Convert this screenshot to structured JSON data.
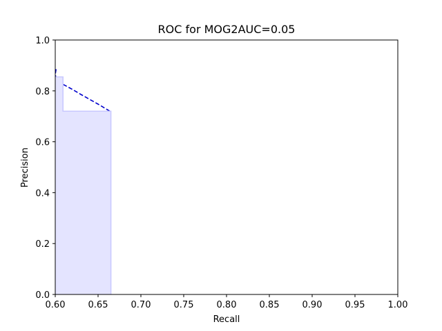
{
  "chart_data": {
    "type": "area",
    "title": "ROC for MOG2AUC=0.05",
    "xlabel": "Recall",
    "ylabel": "Precision",
    "xlim": [
      0.6,
      1.0
    ],
    "ylim": [
      0.0,
      1.0
    ],
    "xticks": [
      "0.60",
      "0.65",
      "0.70",
      "0.75",
      "0.80",
      "0.85",
      "0.90",
      "0.95",
      "1.00"
    ],
    "yticks": [
      "0.0",
      "0.2",
      "0.4",
      "0.6",
      "0.8",
      "1.0"
    ],
    "grid": false,
    "series": [
      {
        "kind": "dashed-line",
        "color": "#0000cc",
        "x": [
          0.601,
          0.6,
          0.601,
          0.603,
          0.606,
          0.61,
          0.62,
          0.63,
          0.64,
          0.65,
          0.66,
          0.665
        ],
        "y": [
          0.885,
          0.865,
          0.85,
          0.84,
          0.832,
          0.824,
          0.806,
          0.786,
          0.767,
          0.748,
          0.728,
          0.718
        ]
      },
      {
        "kind": "step-fill",
        "color": "#c8c8ff",
        "fill": "#e4e4ff",
        "x": [
          0.6,
          0.609,
          0.609,
          0.665,
          0.665
        ],
        "y": [
          0.855,
          0.855,
          0.72,
          0.72,
          0.0
        ]
      }
    ]
  }
}
